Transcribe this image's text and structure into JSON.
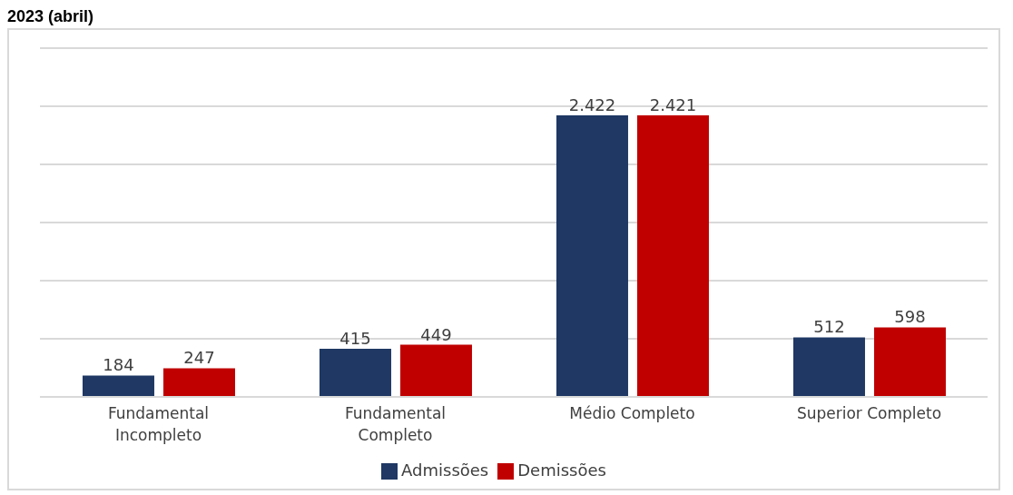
{
  "chart_data": {
    "type": "bar",
    "title": "2023 (abril)",
    "categories": [
      "Fundamental Incompleto",
      "Fundamental Completo",
      "Médio Completo",
      "Superior Completo"
    ],
    "series": [
      {
        "name": "Admissões",
        "color": "#1f3864",
        "values": [
          184,
          415,
          2422,
          512
        ],
        "value_labels": [
          "184",
          "415",
          "2.422",
          "512"
        ]
      },
      {
        "name": "Demissões",
        "color": "#c00000",
        "values": [
          247,
          449,
          2421,
          598
        ],
        "value_labels": [
          "247",
          "449",
          "2.421",
          "598"
        ]
      }
    ],
    "ylim": [
      0,
      3000
    ],
    "yticks": [
      {
        "value": 0,
        "label": null
      },
      {
        "value": 500,
        "label": null
      },
      {
        "value": 1000,
        "label": null
      },
      {
        "value": 1500,
        "label": null
      },
      {
        "value": 2000,
        "label": null
      },
      {
        "value": 2500,
        "label": null
      },
      {
        "value": 3000,
        "label": null
      }
    ],
    "tick_labels": "x",
    "grid": "y",
    "legend": "bottom"
  }
}
